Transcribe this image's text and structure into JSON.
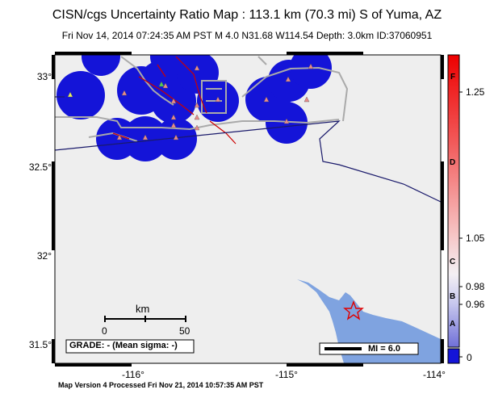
{
  "title": "CISN/cgs Uncertainty Ratio Map : 113.1 km (70.3 mi) S of Yuma, AZ",
  "subtitle": "Fri Nov 14, 2014 07:24:35 AM PST   M 4.0   N31.68 W114.54   Depth: 3.0km   ID:37060951",
  "footer": "Map Version 4 Processed Fri Nov 21, 2014 10:57:35 AM PST",
  "axes": {
    "lat_labels": [
      "33°",
      "32.5°",
      "32°",
      "31.5°"
    ],
    "lon_labels": [
      "-116°",
      "-115°",
      "-114°"
    ]
  },
  "scale_bar": {
    "unit": "km",
    "tick_start": "0",
    "tick_end": "50"
  },
  "grade_label": "GRADE: - (Mean sigma: -)",
  "mmi_label": "MI = 6.0",
  "colorbar": {
    "values": [
      "1.25",
      "1.05",
      "0.98",
      "0.96",
      "0"
    ],
    "grades": [
      "F",
      "D",
      "C",
      "B",
      "A"
    ]
  },
  "colors": {
    "ocean": "#7fa3e0",
    "land": "#eeeeee",
    "station_cover": "#1414d8",
    "border": "#1a1a6b",
    "fault": "#cc0000",
    "road": "#aaaaaa",
    "epicenter": "#e00000"
  }
}
